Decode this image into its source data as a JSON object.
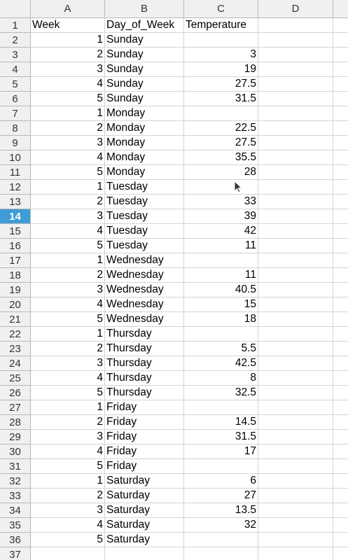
{
  "columns": [
    "A",
    "B",
    "C",
    "D"
  ],
  "header_row": {
    "week": "Week",
    "day": "Day_of_Week",
    "temp": "Temperature"
  },
  "active_row": "14",
  "rows": [
    {
      "num": "2",
      "week": "1",
      "day": "Sunday",
      "temp": ""
    },
    {
      "num": "3",
      "week": "2",
      "day": "Sunday",
      "temp": "3"
    },
    {
      "num": "4",
      "week": "3",
      "day": "Sunday",
      "temp": "19"
    },
    {
      "num": "5",
      "week": "4",
      "day": "Sunday",
      "temp": "27.5"
    },
    {
      "num": "6",
      "week": "5",
      "day": "Sunday",
      "temp": "31.5"
    },
    {
      "num": "7",
      "week": "1",
      "day": "Monday",
      "temp": ""
    },
    {
      "num": "8",
      "week": "2",
      "day": "Monday",
      "temp": "22.5"
    },
    {
      "num": "9",
      "week": "3",
      "day": "Monday",
      "temp": "27.5"
    },
    {
      "num": "10",
      "week": "4",
      "day": "Monday",
      "temp": "35.5"
    },
    {
      "num": "11",
      "week": "5",
      "day": "Monday",
      "temp": "28"
    },
    {
      "num": "12",
      "week": "1",
      "day": "Tuesday",
      "temp": ""
    },
    {
      "num": "13",
      "week": "2",
      "day": "Tuesday",
      "temp": "33"
    },
    {
      "num": "14",
      "week": "3",
      "day": "Tuesday",
      "temp": "39"
    },
    {
      "num": "15",
      "week": "4",
      "day": "Tuesday",
      "temp": "42"
    },
    {
      "num": "16",
      "week": "5",
      "day": "Tuesday",
      "temp": "11"
    },
    {
      "num": "17",
      "week": "1",
      "day": "Wednesday",
      "temp": ""
    },
    {
      "num": "18",
      "week": "2",
      "day": "Wednesday",
      "temp": "11"
    },
    {
      "num": "19",
      "week": "3",
      "day": "Wednesday",
      "temp": "40.5"
    },
    {
      "num": "20",
      "week": "4",
      "day": "Wednesday",
      "temp": "15"
    },
    {
      "num": "21",
      "week": "5",
      "day": "Wednesday",
      "temp": "18"
    },
    {
      "num": "22",
      "week": "1",
      "day": "Thursday",
      "temp": ""
    },
    {
      "num": "23",
      "week": "2",
      "day": "Thursday",
      "temp": "5.5"
    },
    {
      "num": "24",
      "week": "3",
      "day": "Thursday",
      "temp": "42.5"
    },
    {
      "num": "25",
      "week": "4",
      "day": "Thursday",
      "temp": "8"
    },
    {
      "num": "26",
      "week": "5",
      "day": "Thursday",
      "temp": "32.5"
    },
    {
      "num": "27",
      "week": "1",
      "day": "Friday",
      "temp": ""
    },
    {
      "num": "28",
      "week": "2",
      "day": "Friday",
      "temp": "14.5"
    },
    {
      "num": "29",
      "week": "3",
      "day": "Friday",
      "temp": "31.5"
    },
    {
      "num": "30",
      "week": "4",
      "day": "Friday",
      "temp": "17"
    },
    {
      "num": "31",
      "week": "5",
      "day": "Friday",
      "temp": ""
    },
    {
      "num": "32",
      "week": "1",
      "day": "Saturday",
      "temp": "6"
    },
    {
      "num": "33",
      "week": "2",
      "day": "Saturday",
      "temp": "27"
    },
    {
      "num": "34",
      "week": "3",
      "day": "Saturday",
      "temp": "13.5"
    },
    {
      "num": "35",
      "week": "4",
      "day": "Saturday",
      "temp": "32"
    },
    {
      "num": "36",
      "week": "5",
      "day": "Saturday",
      "temp": ""
    },
    {
      "num": "37",
      "week": "",
      "day": "",
      "temp": ""
    }
  ]
}
